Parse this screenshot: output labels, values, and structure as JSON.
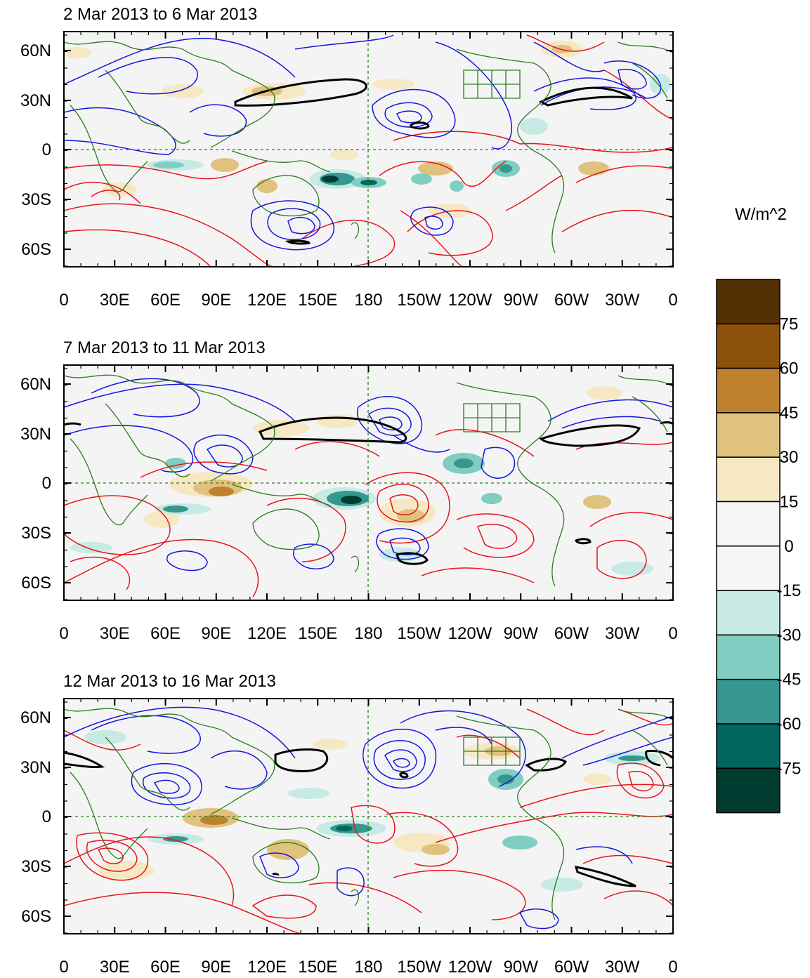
{
  "panels": [
    {
      "title": "2 Mar 2013 to 6 Mar 2013"
    },
    {
      "title": "7 Mar 2013 to 11 Mar 2013"
    },
    {
      "title": "12 Mar 2013 to 16 Mar 2013"
    }
  ],
  "lat_labels": [
    "60N",
    "30N",
    "0",
    "30S",
    "60S"
  ],
  "lon_labels": [
    "0",
    "30E",
    "60E",
    "90E",
    "120E",
    "150E",
    "180",
    "150W",
    "120W",
    "90W",
    "60W",
    "30W",
    "0"
  ],
  "colorbar": {
    "unit": "W/m^2",
    "labels": [
      "75",
      "60",
      "45",
      "30",
      "15",
      "0",
      "-15",
      "-30",
      "-45",
      "-60",
      "-75"
    ],
    "colors": [
      "#543005",
      "#8c510a",
      "#bf812d",
      "#dfc27d",
      "#f6e8c3",
      "#f5f5f5",
      "#f5f5f5",
      "#c7eae5",
      "#80cdc1",
      "#35978f",
      "#01665e",
      "#003c30"
    ]
  },
  "contour_colors": {
    "positive": "#e8141b",
    "negative": "#1515e0",
    "zero_thick": "#000000",
    "coast": "#2a7d1d"
  }
}
